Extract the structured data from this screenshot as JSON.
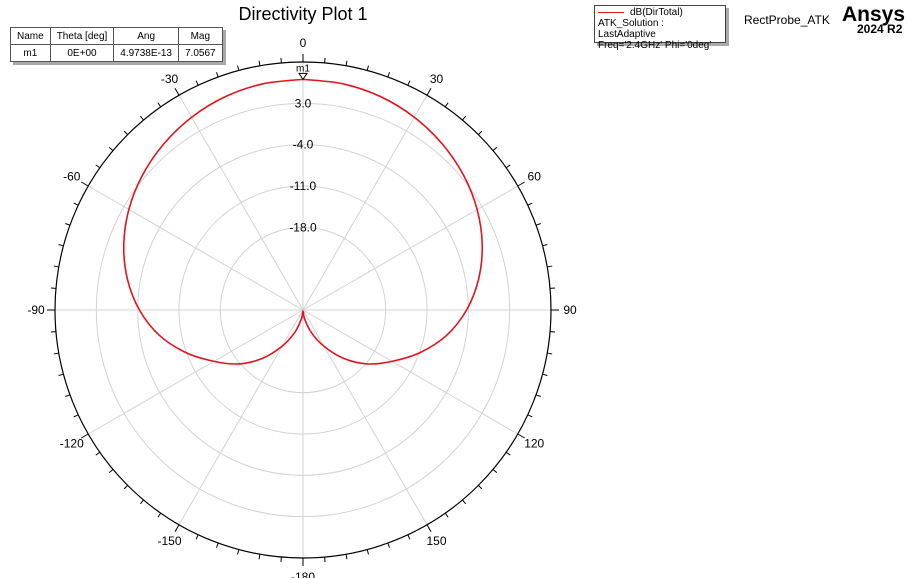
{
  "chart_title": "Directivity Plot 1",
  "marker_table": {
    "headers": [
      "Name",
      "Theta [deg]",
      "Ang",
      "Mag"
    ],
    "rows": [
      [
        "m1",
        "0E+00",
        "4.9738E-13",
        "7.0567"
      ]
    ]
  },
  "legend": {
    "series_name": "dB(DirTotal)",
    "line2": "ATK_Solution : LastAdaptive",
    "line3": "Freq='2.4GHz' Phi='0deg'",
    "color": "#e0141e"
  },
  "project_name": "RectProbe_ATK",
  "brand": {
    "name": "Ansys",
    "version": "2024 R2"
  },
  "chart_data": {
    "type": "polar",
    "title": "Directivity Plot 1",
    "angle_unit": "deg",
    "angle_ticks": [
      0,
      30,
      60,
      90,
      120,
      150,
      -180,
      -150,
      -120,
      -90,
      -60,
      -30
    ],
    "radial_range": [
      -32,
      10
    ],
    "radial_ticks": [
      -18.0,
      -11.0,
      -4.0,
      3.0
    ],
    "grid": true,
    "marker": {
      "name": "m1",
      "theta": 0,
      "mag": 7.0567
    },
    "series": [
      {
        "name": "dB(DirTotal)",
        "color": "#e0141e",
        "theta": [
          0,
          10,
          20,
          30,
          40,
          50,
          60,
          70,
          80,
          90,
          100,
          110,
          120,
          130,
          140,
          150,
          160,
          170,
          180,
          190,
          200,
          210,
          220,
          230,
          240,
          250,
          260,
          270,
          280,
          290,
          300,
          310,
          320,
          330,
          340,
          350,
          360
        ],
        "values": [
          7.06,
          6.9,
          6.45,
          5.7,
          4.7,
          3.5,
          2.05,
          0.3,
          -1.8,
          -4.3,
          -7.3,
          -10.9,
          -14.6,
          -17.8,
          -21.3,
          -24.9,
          -28.0,
          -30.5,
          -31.8,
          -30.5,
          -28.0,
          -24.9,
          -21.3,
          -17.8,
          -14.6,
          -10.9,
          -7.3,
          -4.3,
          -1.8,
          0.3,
          2.05,
          3.5,
          4.7,
          5.7,
          6.45,
          6.9,
          7.06
        ]
      }
    ]
  }
}
